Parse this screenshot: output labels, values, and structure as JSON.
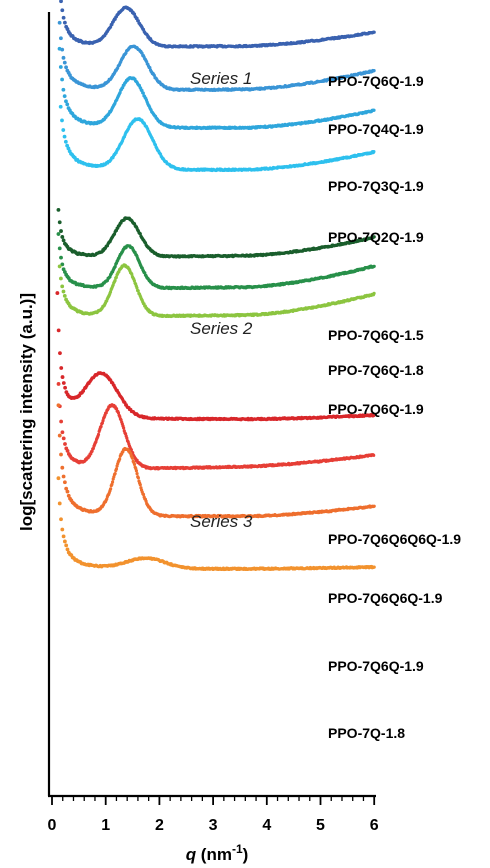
{
  "chart_data": {
    "type": "scatter",
    "xlabel": "q (nm⁻¹)",
    "ylabel": "log[scattering intensity (a.u.)]",
    "xlim": [
      0,
      6
    ],
    "x_ticks": [
      "0",
      "1",
      "2",
      "3",
      "4",
      "5",
      "6"
    ],
    "y_scale": "log",
    "y_ticks_shown": false,
    "grid": false,
    "legend": "none (labels placed beside each curve)",
    "groups": [
      {
        "name": "Series 1",
        "members": [
          "PPO-7Q6Q-1.9",
          "PPO-7Q4Q-1.9",
          "PPO-7Q3Q-1.9",
          "PPO-7Q2Q-1.9"
        ]
      },
      {
        "name": "Series 2",
        "members": [
          "PPO-7Q6Q-1.5",
          "PPO-7Q6Q-1.8",
          "PPO-7Q6Q-1.9"
        ]
      },
      {
        "name": "Series 3",
        "members": [
          "PPO-7Q6Q6Q6Q-1.9",
          "PPO-7Q6Q6Q-1.9",
          "PPO-7Q6Q-1.9",
          "PPO-7Q-1.8"
        ]
      }
    ],
    "series": [
      {
        "name": "PPO-7Q6Q-1.9",
        "group": "Series 1",
        "color": "#3a62b0",
        "q_start": 0.12,
        "shift": 0,
        "baseline": 0.18,
        "end": 0.05,
        "upturn": 1.2,
        "peak_q": 1.38,
        "peak_h": 0.55,
        "peak_w": 0.35
      },
      {
        "name": "PPO-7Q4Q-1.9",
        "group": "Series 1",
        "color": "#3a95d6",
        "q_start": 0.13,
        "shift": -0.62,
        "baseline": 0.25,
        "end": 0.05,
        "upturn": 1.15,
        "peak_q": 1.52,
        "peak_h": 0.62,
        "peak_w": 0.36
      },
      {
        "name": "PPO-7Q3Q-1.9",
        "group": "Series 1",
        "color": "#2fa6dc",
        "q_start": 0.14,
        "shift": -1.15,
        "baseline": 0.24,
        "end": 0.02,
        "upturn": 1.15,
        "peak_q": 1.48,
        "peak_h": 0.7,
        "peak_w": 0.36
      },
      {
        "name": "PPO-7Q2Q-1.9",
        "group": "Series 1",
        "color": "#2ec0ee",
        "q_start": 0.15,
        "shift": -1.75,
        "baseline": 0.25,
        "end": 0.02,
        "upturn": 1.05,
        "peak_q": 1.6,
        "peak_h": 0.72,
        "peak_w": 0.38
      },
      {
        "name": "PPO-7Q6Q-1.5",
        "group": "Series 2",
        "color": "#1a5e2c",
        "q_start": 0.12,
        "shift": -3.0,
        "baseline": 0.24,
        "end": 0.06,
        "upturn": 0.7,
        "peak_q": 1.4,
        "peak_h": 0.55,
        "peak_w": 0.33
      },
      {
        "name": "PPO-7Q6Q-1.8",
        "group": "Series 2",
        "color": "#28904a",
        "q_start": 0.12,
        "shift": -3.45,
        "baseline": 0.28,
        "end": 0.06,
        "upturn": 0.8,
        "peak_q": 1.42,
        "peak_h": 0.6,
        "peak_w": 0.3
      },
      {
        "name": "PPO-7Q6Q-1.9",
        "group": "Series 2",
        "color": "#8cc540",
        "q_start": 0.13,
        "shift": -3.85,
        "baseline": 0.28,
        "end": 0.06,
        "upturn": 0.85,
        "peak_q": 1.35,
        "peak_h": 0.72,
        "peak_w": 0.3
      },
      {
        "name": "PPO-7Q6Q6Q6Q-1.9",
        "group": "Series 3",
        "color": "#d8272a",
        "q_start": 0.1,
        "shift": -5.3,
        "baseline": 0.06,
        "end": 0.0,
        "upturn": 1.8,
        "peak_q": 0.92,
        "peak_h": 0.62,
        "peak_w": 0.42
      },
      {
        "name": "PPO-7Q6Q6Q-1.9",
        "group": "Series 3",
        "color": "#e63f36",
        "q_start": 0.11,
        "shift": -6.05,
        "baseline": 0.12,
        "end": 0.12,
        "upturn": 1.5,
        "peak_q": 1.12,
        "peak_h": 0.9,
        "peak_w": 0.32
      },
      {
        "name": "PPO-7Q6Q-1.9",
        "group": "Series 3",
        "color": "#ee6f2e",
        "q_start": 0.12,
        "shift": -6.7,
        "baseline": 0.14,
        "end": 0.02,
        "upturn": 1.6,
        "peak_q": 1.38,
        "peak_h": 0.95,
        "peak_w": 0.3
      },
      {
        "name": "PPO-7Q-1.8",
        "group": "Series 3",
        "color": "#f2922e",
        "q_start": 0.12,
        "shift": -7.45,
        "baseline": 0.02,
        "end": 0.02,
        "upturn": 1.3,
        "peak_q": 1.75,
        "peak_h": 0.15,
        "peak_w": 0.5
      }
    ]
  }
}
